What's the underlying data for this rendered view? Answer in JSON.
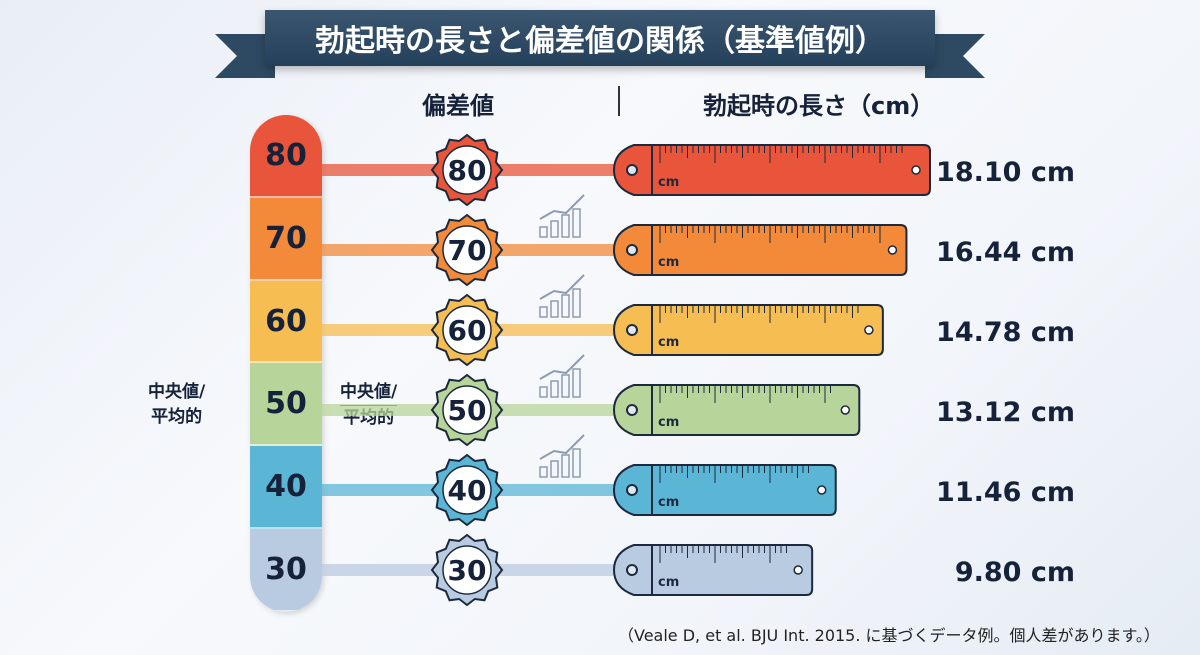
{
  "title": "勃起時の長さと偏差値の関係（基準値例）",
  "headers": {
    "score": "偏差値",
    "length": "勃起時の長さ（cm）"
  },
  "median_label": {
    "line1": "中央値/",
    "line2": "平均的"
  },
  "footnote": "（Veale D, et al. BJU Int. 2015. に基づくデータ例。個人差があります。）",
  "chart_data": {
    "type": "bar",
    "title": "勃起時の長さと偏差値の関係（基準値例）",
    "xlabel": "勃起時の長さ（cm）",
    "ylabel": "偏差値",
    "categories": [
      "80",
      "70",
      "60",
      "50",
      "40",
      "30"
    ],
    "values": [
      18.1,
      16.44,
      14.78,
      13.12,
      11.46,
      9.8
    ],
    "value_labels": [
      "18.10 cm",
      "16.44 cm",
      "14.78 cm",
      "13.12 cm",
      "11.46 cm",
      "9.80 cm"
    ],
    "unit": "cm",
    "colors": [
      "#e8553a",
      "#f28a3a",
      "#f5bd52",
      "#b7d59a",
      "#5bb6d6",
      "#b9cbe0"
    ]
  }
}
